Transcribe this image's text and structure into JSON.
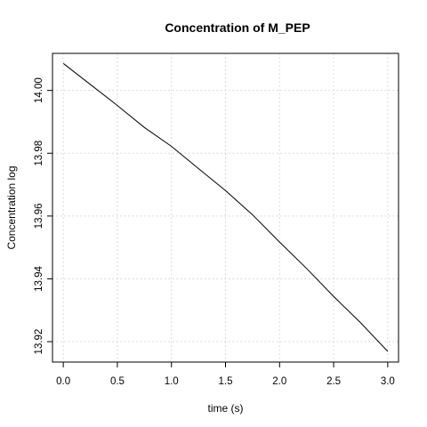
{
  "chart_data": {
    "type": "line",
    "title": "Concentration of M_PEP",
    "xlabel": "time (s)",
    "ylabel": "Concentration log",
    "xlim": [
      -0.1,
      3.1
    ],
    "ylim": [
      13.9135,
      14.0118
    ],
    "x_ticks": [
      0,
      0.5,
      1,
      1.5,
      2,
      2.5,
      3
    ],
    "x_tick_labels": [
      "0.0",
      "0.5",
      "1.0",
      "1.5",
      "2.0",
      "2.5",
      "3.0"
    ],
    "y_ticks": [
      13.92,
      13.94,
      13.96,
      13.98,
      14.0
    ],
    "y_tick_labels": [
      "13.92",
      "13.94",
      "13.96",
      "13.98",
      "14.00"
    ],
    "grid": true,
    "grid_style": "dotted",
    "line_color": "#000000",
    "grid_color": "#cfcfcf",
    "series": [
      {
        "x": [
          0,
          0.25,
          0.5,
          0.75,
          1.0,
          1.25,
          1.5,
          1.75,
          2.0,
          2.25,
          2.5,
          2.75,
          3.0
        ],
        "y": [
          14.0086,
          14.0019,
          13.9952,
          13.9882,
          13.9822,
          13.9751,
          13.9681,
          13.9604,
          13.9517,
          13.9433,
          13.9344,
          13.926,
          13.9169
        ]
      }
    ]
  }
}
